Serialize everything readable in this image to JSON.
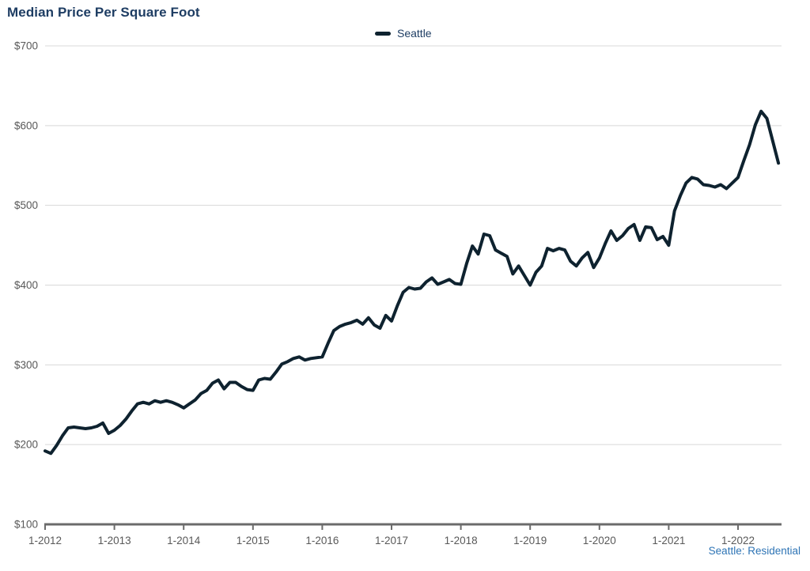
{
  "page": {
    "title": "Median Price Per Square Foot",
    "source_note": "Seattle: Residential"
  },
  "legend": {
    "items": [
      {
        "label": "Seattle",
        "color": "#0e222f"
      }
    ]
  },
  "colors": {
    "line": "#0e222f",
    "title_text": "#1e3d63",
    "legend_text": "#1e3d63",
    "axis_text": "#595959",
    "gridline": "#d8d8d8",
    "axis_line": "#6b6b6b",
    "source_note_text": "#2e74b5"
  },
  "chart_data": {
    "type": "line",
    "title": "Median Price Per Square Foot",
    "xlabel": "",
    "ylabel": "",
    "x_start": "1-2012",
    "x_end": "8-2022",
    "frequency": "monthly",
    "grid": "horizontal",
    "legend_position": "top-center",
    "ylim": [
      100,
      700
    ],
    "y_ticks": [
      100,
      200,
      300,
      400,
      500,
      600,
      700
    ],
    "y_tick_labels": [
      "$100",
      "$200",
      "$300",
      "$400",
      "$500",
      "$600",
      "$700"
    ],
    "x_tick_labels": [
      "1-2012",
      "1-2013",
      "1-2014",
      "1-2015",
      "1-2016",
      "1-2017",
      "1-2018",
      "1-2019",
      "1-2020",
      "1-2021",
      "1-2022"
    ],
    "x_tick_month_indices": [
      0,
      12,
      24,
      36,
      48,
      60,
      72,
      84,
      96,
      108,
      120
    ],
    "series": [
      {
        "name": "Seattle",
        "color": "#0e222f",
        "values": [
          192,
          189,
          199,
          211,
          221,
          222,
          221,
          220,
          221,
          223,
          227,
          214,
          218,
          224,
          232,
          242,
          251,
          253,
          251,
          255,
          253,
          255,
          253,
          250,
          246,
          251,
          256,
          264,
          268,
          277,
          281,
          270,
          278,
          278,
          273,
          269,
          268,
          281,
          283,
          282,
          291,
          301,
          304,
          308,
          310,
          306,
          308,
          309,
          310,
          327,
          343,
          348,
          351,
          353,
          356,
          351,
          359,
          350,
          346,
          362,
          355,
          374,
          391,
          397,
          395,
          396,
          404,
          409,
          401,
          404,
          407,
          402,
          401,
          427,
          449,
          439,
          464,
          462,
          444,
          440,
          436,
          414,
          424,
          412,
          400,
          416,
          424,
          446,
          443,
          446,
          444,
          430,
          424,
          434,
          441,
          422,
          434,
          452,
          468,
          456,
          462,
          471,
          476,
          456,
          473,
          472,
          457,
          461,
          450,
          493,
          512,
          528,
          535,
          533,
          526,
          525,
          523,
          526,
          521,
          528,
          535,
          556,
          576,
          601,
          618,
          609,
          581,
          553
        ]
      }
    ]
  }
}
